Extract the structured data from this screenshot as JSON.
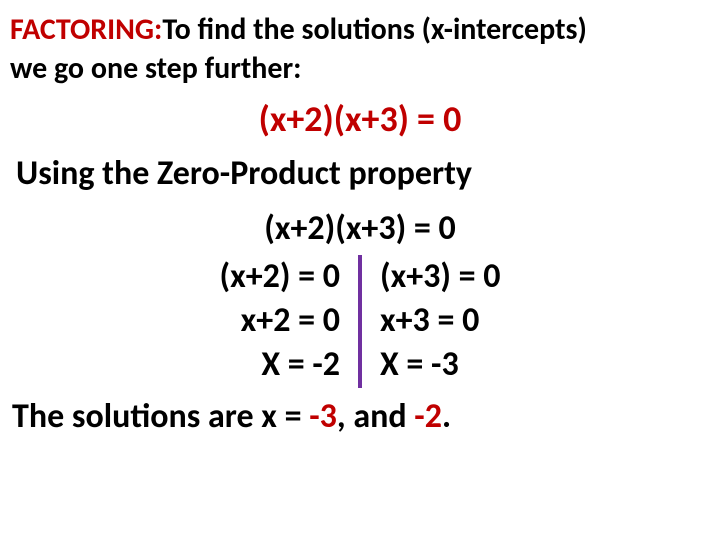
{
  "header": {
    "label": "FACTORING:",
    "text": "To find the solutions (x-intercepts)",
    "subheader": "we go one step further:"
  },
  "equation_main": "(x+2)(x+3) = 0",
  "zero_product_text": "Using the Zero-Product property",
  "equation_top": "(x+2)(x+3) = 0",
  "left_steps": {
    "s1": "(x+2) = 0",
    "s2": "x+2 = 0",
    "s3": "X = -2"
  },
  "right_steps": {
    "s1": "(x+3) = 0",
    "s2": "x+3 = 0",
    "s3": "X = -3"
  },
  "solutions": {
    "prefix": "The solutions are x = ",
    "val1": "-3",
    "sep": ", and ",
    "val2": "-2",
    "suffix": "."
  },
  "colors": {
    "red": "#c00000",
    "black": "#000000",
    "purple": "#7030a0",
    "background": "#ffffff"
  },
  "typography": {
    "font_family": "Calibri",
    "header_size": 30,
    "body_size": 34,
    "equation_red_size": 36,
    "weight": "bold"
  }
}
